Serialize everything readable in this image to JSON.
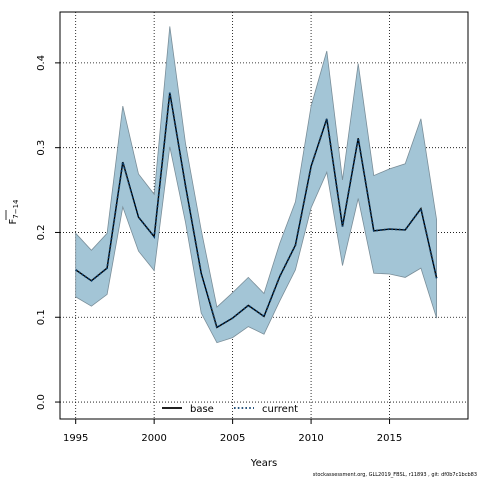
{
  "chart_data": {
    "type": "line",
    "ylabel_main": "F",
    "ylabel_sub": "7−14",
    "xlabel": "Years",
    "xlim": [
      1994,
      2020
    ],
    "ylim": [
      -0.02,
      0.46
    ],
    "xticks": [
      1995,
      2000,
      2005,
      2010,
      2015
    ],
    "yticks": [
      0.0,
      0.1,
      0.2,
      0.3,
      0.4
    ],
    "ytick_labels": [
      "0.0",
      "0.1",
      "0.2",
      "0.3",
      "0.4"
    ],
    "grid": true,
    "legend_position": "bottom-center",
    "x": [
      1995,
      1996,
      1997,
      1998,
      1999,
      2000,
      2001,
      2002,
      2003,
      2004,
      2005,
      2006,
      2007,
      2008,
      2009,
      2010,
      2011,
      2012,
      2013,
      2014,
      2015,
      2016,
      2017,
      2018
    ],
    "series": [
      {
        "name": "base",
        "style": "solid",
        "color": "#000000",
        "values": [
          0.156,
          0.143,
          0.158,
          0.283,
          0.218,
          0.195,
          0.365,
          0.255,
          0.152,
          0.088,
          0.099,
          0.114,
          0.101,
          0.148,
          0.185,
          0.278,
          0.334,
          0.207,
          0.311,
          0.202,
          0.204,
          0.203,
          0.228,
          0.146
        ]
      },
      {
        "name": "current",
        "style": "dotted",
        "color": "#0a3d6b",
        "values": [
          0.156,
          0.143,
          0.158,
          0.283,
          0.218,
          0.195,
          0.365,
          0.255,
          0.152,
          0.088,
          0.099,
          0.114,
          0.101,
          0.148,
          0.185,
          0.278,
          0.334,
          0.207,
          0.311,
          0.202,
          0.204,
          0.203,
          0.228,
          0.146
        ]
      }
    ],
    "band": {
      "upper": [
        0.199,
        0.179,
        0.199,
        0.349,
        0.269,
        0.245,
        0.443,
        0.305,
        0.203,
        0.112,
        0.129,
        0.147,
        0.128,
        0.187,
        0.236,
        0.349,
        0.414,
        0.262,
        0.399,
        0.267,
        0.275,
        0.281,
        0.334,
        0.215
      ],
      "lower": [
        0.124,
        0.113,
        0.127,
        0.23,
        0.178,
        0.155,
        0.301,
        0.212,
        0.105,
        0.07,
        0.076,
        0.089,
        0.08,
        0.119,
        0.156,
        0.229,
        0.271,
        0.161,
        0.24,
        0.152,
        0.151,
        0.147,
        0.158,
        0.099
      ],
      "fill": "#a3c5d6",
      "stroke": "#7a8e99"
    }
  },
  "footnote": "stockassessment.org, GLL2019_FBSL, r11893 , git: df0b7c1bcb83"
}
